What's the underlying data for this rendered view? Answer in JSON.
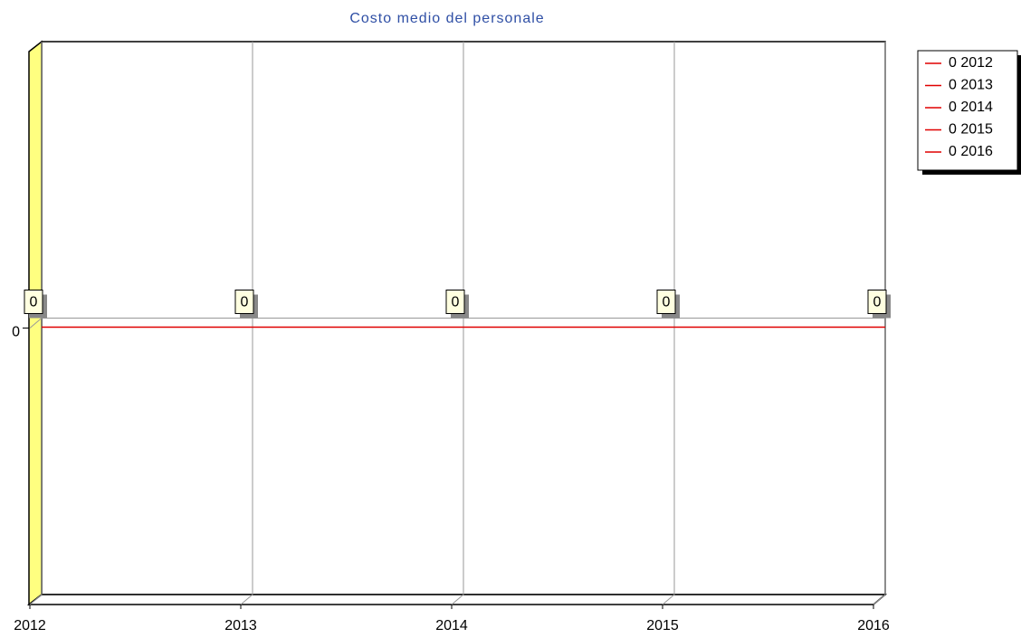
{
  "chart_data": {
    "type": "line",
    "title": "Costo medio del personale",
    "x": [
      2012,
      2013,
      2014,
      2015,
      2016
    ],
    "series": [
      {
        "color": "#e00000",
        "values": [
          0,
          0,
          0,
          0,
          0
        ]
      }
    ],
    "xlim": [
      2012,
      2016
    ],
    "xticks": [
      2012,
      2013,
      2014,
      2015,
      2016
    ],
    "ylim": [
      -1,
      1
    ],
    "yticks": [
      0
    ],
    "grid": true,
    "legend": "right"
  }
}
